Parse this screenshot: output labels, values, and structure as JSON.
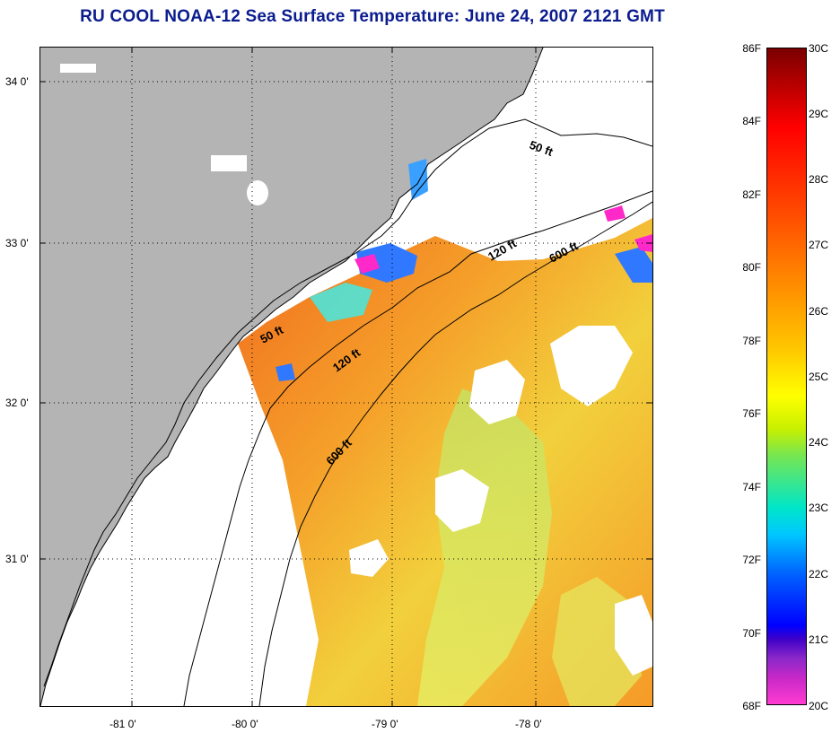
{
  "title": "RU COOL  NOAA-12  Sea Surface Temperature:  June 24, 2007 2121 GMT",
  "map": {
    "lat_labels": [
      "34 0'",
      "33 0'",
      "32 0'",
      "31 0'"
    ],
    "lon_labels": [
      "-81 0'",
      "-80 0'",
      "-79 0'",
      "-78 0'"
    ],
    "contour_labels": [
      "50 ft",
      "50 ft",
      "120 ft",
      "120 ft",
      "600 ft",
      "600 ft"
    ],
    "colors": {
      "land": "#b4b4b4",
      "no_data": "#ffffff",
      "warm": "#f0781e",
      "mid": "#f5c81e",
      "cool": "#a0e650",
      "cold": "#3278ff",
      "coldest": "#ff28c8"
    }
  },
  "colorbar": {
    "fahrenheit_labels": [
      "86F",
      "84F",
      "82F",
      "80F",
      "78F",
      "76F",
      "74F",
      "72F",
      "70F",
      "68F"
    ],
    "celsius_labels": [
      "30C",
      "29C",
      "28C",
      "27C",
      "26C",
      "25C",
      "24C",
      "23C",
      "22C",
      "21C",
      "20C"
    ],
    "range_f": [
      68,
      86
    ],
    "range_c": [
      20,
      30
    ]
  }
}
